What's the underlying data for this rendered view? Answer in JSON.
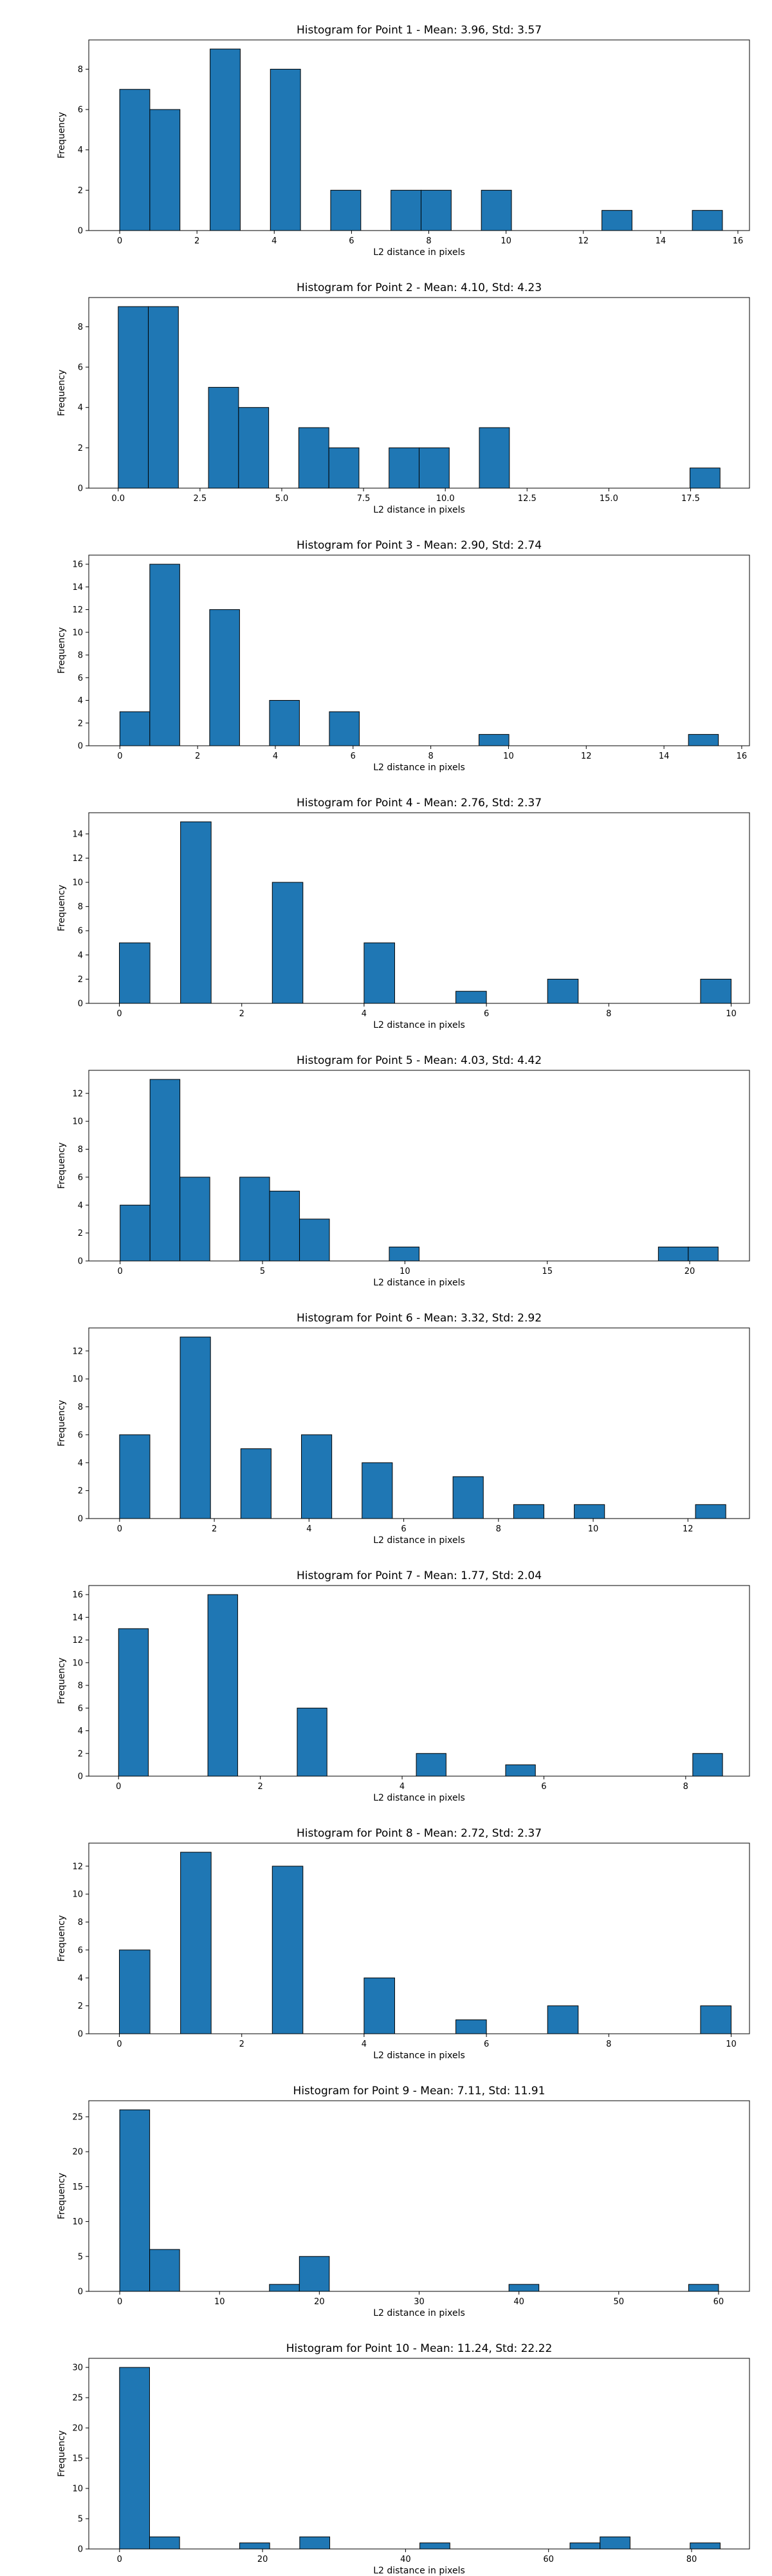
{
  "chart_data": [
    {
      "type": "bar",
      "title": "Histogram for Point 1 - Mean: 3.96, Std: 3.57",
      "xlabel": "L2 distance in pixels",
      "ylabel": "Frequency",
      "xlim": [
        -0.8,
        16.3
      ],
      "ylim": [
        0,
        9.45
      ],
      "xticks": [
        0,
        2,
        4,
        6,
        8,
        10,
        12,
        14,
        16
      ],
      "xtick_labels": [
        "0",
        "2",
        "4",
        "6",
        "8",
        "10",
        "12",
        "14",
        "16"
      ],
      "yticks": [
        0,
        2,
        4,
        6,
        8
      ],
      "ytick_labels": [
        "0",
        "2",
        "4",
        "6",
        "8"
      ],
      "bins": [
        {
          "x0": 0,
          "x1": 0.78,
          "count": 7
        },
        {
          "x0": 0.78,
          "x1": 1.56,
          "count": 6
        },
        {
          "x0": 2.34,
          "x1": 3.12,
          "count": 9
        },
        {
          "x0": 3.9,
          "x1": 4.68,
          "count": 8
        },
        {
          "x0": 5.46,
          "x1": 6.24,
          "count": 2
        },
        {
          "x0": 7.02,
          "x1": 7.8,
          "count": 2
        },
        {
          "x0": 7.8,
          "x1": 8.58,
          "count": 2
        },
        {
          "x0": 9.36,
          "x1": 10.14,
          "count": 2
        },
        {
          "x0": 12.48,
          "x1": 13.26,
          "count": 1
        },
        {
          "x0": 14.82,
          "x1": 15.6,
          "count": 1
        }
      ]
    },
    {
      "type": "bar",
      "title": "Histogram for Point 2 - Mean: 4.10, Std: 4.23",
      "xlabel": "L2 distance in pixels",
      "ylabel": "Frequency",
      "xlim": [
        -0.9,
        19.3
      ],
      "ylim": [
        0,
        9.45
      ],
      "xticks": [
        0,
        2.5,
        5,
        7.5,
        10,
        12.5,
        15,
        17.5
      ],
      "xtick_labels": [
        "0.0",
        "2.5",
        "5.0",
        "7.5",
        "10.0",
        "12.5",
        "15.0",
        "17.5"
      ],
      "yticks": [
        0,
        2,
        4,
        6,
        8
      ],
      "ytick_labels": [
        "0",
        "2",
        "4",
        "6",
        "8"
      ],
      "bins": [
        {
          "x0": 0,
          "x1": 0.92,
          "count": 9
        },
        {
          "x0": 0.92,
          "x1": 1.84,
          "count": 9
        },
        {
          "x0": 2.76,
          "x1": 3.68,
          "count": 5
        },
        {
          "x0": 3.68,
          "x1": 4.6,
          "count": 4
        },
        {
          "x0": 5.52,
          "x1": 6.44,
          "count": 3
        },
        {
          "x0": 6.44,
          "x1": 7.36,
          "count": 2
        },
        {
          "x0": 8.28,
          "x1": 9.2,
          "count": 2
        },
        {
          "x0": 9.2,
          "x1": 10.12,
          "count": 2
        },
        {
          "x0": 11.04,
          "x1": 11.96,
          "count": 3
        },
        {
          "x0": 17.48,
          "x1": 18.4,
          "count": 1
        }
      ]
    },
    {
      "type": "bar",
      "title": "Histogram for Point 3 - Mean: 2.90, Std: 2.74",
      "xlabel": "L2 distance in pixels",
      "ylabel": "Frequency",
      "xlim": [
        -0.8,
        16.2
      ],
      "ylim": [
        0,
        16.8
      ],
      "xticks": [
        0,
        2,
        4,
        6,
        8,
        10,
        12,
        14,
        16
      ],
      "xtick_labels": [
        "0",
        "2",
        "4",
        "6",
        "8",
        "10",
        "12",
        "14",
        "16"
      ],
      "yticks": [
        0,
        2,
        4,
        6,
        8,
        10,
        12,
        14,
        16
      ],
      "ytick_labels": [
        "0",
        "2",
        "4",
        "6",
        "8",
        "10",
        "12",
        "14",
        "16"
      ],
      "bins": [
        {
          "x0": 0,
          "x1": 0.77,
          "count": 3
        },
        {
          "x0": 0.77,
          "x1": 1.54,
          "count": 16
        },
        {
          "x0": 2.31,
          "x1": 3.08,
          "count": 12
        },
        {
          "x0": 3.85,
          "x1": 4.62,
          "count": 4
        },
        {
          "x0": 5.39,
          "x1": 6.16,
          "count": 3
        },
        {
          "x0": 9.24,
          "x1": 10.01,
          "count": 1
        },
        {
          "x0": 14.63,
          "x1": 15.4,
          "count": 1
        }
      ]
    },
    {
      "type": "bar",
      "title": "Histogram for Point 4 - Mean: 2.76, Std: 2.37",
      "xlabel": "L2 distance in pixels",
      "ylabel": "Frequency",
      "xlim": [
        -0.5,
        10.3
      ],
      "ylim": [
        0,
        15.75
      ],
      "xticks": [
        0,
        2,
        4,
        6,
        8,
        10
      ],
      "xtick_labels": [
        "0",
        "2",
        "4",
        "6",
        "8",
        "10"
      ],
      "yticks": [
        0,
        2,
        4,
        6,
        8,
        10,
        12,
        14
      ],
      "ytick_labels": [
        "0",
        "2",
        "4",
        "6",
        "8",
        "10",
        "12",
        "14"
      ],
      "bins": [
        {
          "x0": 0,
          "x1": 0.5,
          "count": 5
        },
        {
          "x0": 1,
          "x1": 1.5,
          "count": 15
        },
        {
          "x0": 2.5,
          "x1": 3,
          "count": 10
        },
        {
          "x0": 4,
          "x1": 4.5,
          "count": 5
        },
        {
          "x0": 5.5,
          "x1": 6,
          "count": 1
        },
        {
          "x0": 7,
          "x1": 7.5,
          "count": 2
        },
        {
          "x0": 9.5,
          "x1": 10,
          "count": 2
        }
      ]
    },
    {
      "type": "bar",
      "title": "Histogram for Point 5 - Mean: 4.03, Std: 4.42",
      "xlabel": "L2 distance in pixels",
      "ylabel": "Frequency",
      "xlim": [
        -1.1,
        22.1
      ],
      "ylim": [
        0,
        13.65
      ],
      "xticks": [
        0,
        5,
        10,
        15,
        20
      ],
      "xtick_labels": [
        "0",
        "5",
        "10",
        "15",
        "20"
      ],
      "yticks": [
        0,
        2,
        4,
        6,
        8,
        10,
        12
      ],
      "ytick_labels": [
        "0",
        "2",
        "4",
        "6",
        "8",
        "10",
        "12"
      ],
      "bins": [
        {
          "x0": 0,
          "x1": 1.05,
          "count": 4
        },
        {
          "x0": 1.05,
          "x1": 2.1,
          "count": 13
        },
        {
          "x0": 2.1,
          "x1": 3.15,
          "count": 6
        },
        {
          "x0": 4.2,
          "x1": 5.25,
          "count": 6
        },
        {
          "x0": 5.25,
          "x1": 6.3,
          "count": 5
        },
        {
          "x0": 6.3,
          "x1": 7.35,
          "count": 3
        },
        {
          "x0": 9.45,
          "x1": 10.5,
          "count": 1
        },
        {
          "x0": 18.9,
          "x1": 19.95,
          "count": 1
        },
        {
          "x0": 19.95,
          "x1": 21,
          "count": 1
        }
      ]
    },
    {
      "type": "bar",
      "title": "Histogram for Point 6 - Mean: 3.32, Std: 2.92",
      "xlabel": "L2 distance in pixels",
      "ylabel": "Frequency",
      "xlim": [
        -0.65,
        13.3
      ],
      "ylim": [
        0,
        13.65
      ],
      "xticks": [
        0,
        2,
        4,
        6,
        8,
        10,
        12
      ],
      "xtick_labels": [
        "0",
        "2",
        "4",
        "6",
        "8",
        "10",
        "12"
      ],
      "yticks": [
        0,
        2,
        4,
        6,
        8,
        10,
        12
      ],
      "ytick_labels": [
        "0",
        "2",
        "4",
        "6",
        "8",
        "10",
        "12"
      ],
      "bins": [
        {
          "x0": 0,
          "x1": 0.64,
          "count": 6
        },
        {
          "x0": 1.28,
          "x1": 1.92,
          "count": 13
        },
        {
          "x0": 2.56,
          "x1": 3.2,
          "count": 5
        },
        {
          "x0": 3.84,
          "x1": 4.48,
          "count": 6
        },
        {
          "x0": 5.12,
          "x1": 5.76,
          "count": 4
        },
        {
          "x0": 7.04,
          "x1": 7.68,
          "count": 3
        },
        {
          "x0": 8.32,
          "x1": 8.96,
          "count": 1
        },
        {
          "x0": 9.6,
          "x1": 10.24,
          "count": 1
        },
        {
          "x0": 12.16,
          "x1": 12.8,
          "count": 1
        }
      ]
    },
    {
      "type": "bar",
      "title": "Histogram for Point 7 - Mean: 1.77, Std: 2.04",
      "xlabel": "L2 distance in pixels",
      "ylabel": "Frequency",
      "xlim": [
        -0.42,
        8.9
      ],
      "ylim": [
        0,
        16.8
      ],
      "xticks": [
        0,
        2,
        4,
        6,
        8
      ],
      "xtick_labels": [
        "0",
        "2",
        "4",
        "6",
        "8"
      ],
      "yticks": [
        0,
        2,
        4,
        6,
        8,
        10,
        12,
        14,
        16
      ],
      "ytick_labels": [
        "0",
        "2",
        "4",
        "6",
        "8",
        "10",
        "12",
        "14",
        "16"
      ],
      "bins": [
        {
          "x0": 0,
          "x1": 0.42,
          "count": 13
        },
        {
          "x0": 1.26,
          "x1": 1.68,
          "count": 16
        },
        {
          "x0": 2.52,
          "x1": 2.94,
          "count": 6
        },
        {
          "x0": 4.2,
          "x1": 4.62,
          "count": 2
        },
        {
          "x0": 5.46,
          "x1": 5.88,
          "count": 1
        },
        {
          "x0": 8.1,
          "x1": 8.52,
          "count": 2
        }
      ]
    },
    {
      "type": "bar",
      "title": "Histogram for Point 8 - Mean: 2.72, Std: 2.37",
      "xlabel": "L2 distance in pixels",
      "ylabel": "Frequency",
      "xlim": [
        -0.5,
        10.3
      ],
      "ylim": [
        0,
        13.65
      ],
      "xticks": [
        0,
        2,
        4,
        6,
        8,
        10
      ],
      "xtick_labels": [
        "0",
        "2",
        "4",
        "6",
        "8",
        "10"
      ],
      "yticks": [
        0,
        2,
        4,
        6,
        8,
        10,
        12
      ],
      "ytick_labels": [
        "0",
        "2",
        "4",
        "6",
        "8",
        "10",
        "12"
      ],
      "bins": [
        {
          "x0": 0,
          "x1": 0.5,
          "count": 6
        },
        {
          "x0": 1,
          "x1": 1.5,
          "count": 13
        },
        {
          "x0": 2.5,
          "x1": 3,
          "count": 12
        },
        {
          "x0": 4,
          "x1": 4.5,
          "count": 4
        },
        {
          "x0": 5.5,
          "x1": 6,
          "count": 1
        },
        {
          "x0": 7,
          "x1": 7.5,
          "count": 2
        },
        {
          "x0": 9.5,
          "x1": 10,
          "count": 2
        }
      ]
    },
    {
      "type": "bar",
      "title": "Histogram for Point 9 - Mean: 7.11, Std: 11.91",
      "xlabel": "L2 distance in pixels",
      "ylabel": "Frequency",
      "xlim": [
        -3.1,
        63.1
      ],
      "ylim": [
        0,
        27.3
      ],
      "xticks": [
        0,
        10,
        20,
        30,
        40,
        50,
        60
      ],
      "xtick_labels": [
        "0",
        "10",
        "20",
        "30",
        "40",
        "50",
        "60"
      ],
      "yticks": [
        0,
        5,
        10,
        15,
        20,
        25
      ],
      "ytick_labels": [
        "0",
        "5",
        "10",
        "15",
        "20",
        "25"
      ],
      "bins": [
        {
          "x0": 0,
          "x1": 3,
          "count": 26
        },
        {
          "x0": 3,
          "x1": 6,
          "count": 6
        },
        {
          "x0": 15,
          "x1": 18,
          "count": 1
        },
        {
          "x0": 18,
          "x1": 21,
          "count": 5
        },
        {
          "x0": 39,
          "x1": 42,
          "count": 1
        },
        {
          "x0": 57,
          "x1": 60,
          "count": 1
        }
      ]
    },
    {
      "type": "bar",
      "title": "Histogram for Point 10 - Mean: 11.24, Std: 22.22",
      "xlabel": "L2 distance in pixels",
      "ylabel": "Frequency",
      "xlim": [
        -4.3,
        88.1
      ],
      "ylim": [
        0,
        31.5
      ],
      "xticks": [
        0,
        20,
        40,
        60,
        80
      ],
      "xtick_labels": [
        "0",
        "20",
        "40",
        "60",
        "80"
      ],
      "yticks": [
        0,
        5,
        10,
        15,
        20,
        25,
        30
      ],
      "ytick_labels": [
        "0",
        "5",
        "10",
        "15",
        "20",
        "25",
        "30"
      ],
      "bins": [
        {
          "x0": 0,
          "x1": 4.2,
          "count": 30
        },
        {
          "x0": 4.2,
          "x1": 8.4,
          "count": 2
        },
        {
          "x0": 16.8,
          "x1": 21,
          "count": 1
        },
        {
          "x0": 25.2,
          "x1": 29.4,
          "count": 2
        },
        {
          "x0": 42,
          "x1": 46.2,
          "count": 1
        },
        {
          "x0": 63,
          "x1": 67.2,
          "count": 1
        },
        {
          "x0": 67.2,
          "x1": 71.4,
          "count": 2
        },
        {
          "x0": 79.8,
          "x1": 84,
          "count": 1
        }
      ]
    }
  ]
}
